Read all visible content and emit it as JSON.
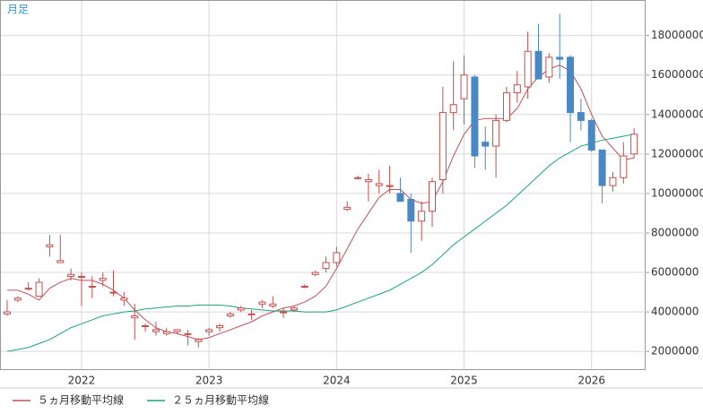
{
  "chart_data": {
    "type": "candlestick",
    "label": "月足",
    "categories": [
      null,
      null,
      null,
      null,
      null,
      null,
      null,
      "2022",
      null,
      null,
      null,
      null,
      null,
      null,
      null,
      null,
      null,
      null,
      null,
      "2023",
      null,
      null,
      null,
      null,
      null,
      null,
      null,
      null,
      null,
      null,
      null,
      "2024",
      null,
      null,
      null,
      null,
      null,
      null,
      null,
      null,
      null,
      null,
      null,
      "2025",
      null,
      null,
      null,
      null,
      null,
      null,
      null,
      null,
      null,
      null,
      null,
      "2026",
      null,
      null,
      null,
      null
    ],
    "open": [
      3900000,
      4600000,
      5200000,
      4800000,
      7300000,
      6500000,
      5800000,
      5800000,
      5300000,
      5600000,
      5000000,
      4600000,
      3700000,
      3300000,
      3000000,
      2900000,
      3000000,
      2900000,
      2500000,
      3000000,
      3200000,
      3800000,
      4100000,
      3900000,
      4400000,
      4300000,
      4000000,
      4100000,
      5300000,
      5900000,
      6200000,
      6500000,
      9200000,
      10800000,
      10600000,
      10400000,
      10400000,
      10000000,
      9700000,
      8600000,
      9100000,
      10700000,
      14100000,
      14800000,
      15900000,
      12600000,
      12400000,
      13700000,
      15100000,
      15400000,
      17200000,
      15900000,
      16900000,
      16900000,
      14100000,
      13700000,
      12200000,
      10400000,
      10800000,
      12000000
    ],
    "high": [
      4600000,
      4800000,
      5500000,
      5700000,
      7900000,
      7900000,
      6200000,
      6000000,
      5800000,
      6000000,
      6100000,
      5000000,
      4400000,
      3400000,
      3500000,
      3200000,
      3100000,
      3100000,
      2700000,
      3200000,
      3400000,
      4000000,
      4300000,
      4100000,
      4600000,
      4800000,
      4200000,
      4300000,
      5400000,
      6100000,
      6800000,
      7300000,
      9600000,
      10900000,
      11000000,
      11200000,
      11400000,
      10800000,
      10000000,
      9600000,
      10800000,
      15400000,
      16700000,
      17000000,
      16000000,
      13400000,
      14000000,
      15400000,
      16200000,
      18200000,
      18600000,
      17100000,
      19100000,
      17000000,
      14800000,
      13800000,
      12200000,
      11100000,
      12600000,
      13300000
    ],
    "low": [
      3800000,
      4500000,
      5100000,
      4800000,
      6800000,
      6500000,
      5600000,
      4300000,
      4700000,
      5300000,
      4800000,
      4300000,
      2600000,
      3000000,
      2800000,
      2800000,
      2900000,
      2300000,
      2200000,
      2800000,
      3000000,
      3700000,
      4000000,
      3600000,
      4200000,
      4200000,
      3700000,
      4000000,
      5200000,
      5800000,
      6000000,
      6300000,
      9100000,
      10700000,
      9600000,
      10000000,
      10000000,
      9600000,
      7000000,
      7600000,
      8300000,
      10000000,
      13200000,
      13500000,
      11300000,
      11200000,
      10800000,
      13600000,
      14600000,
      14800000,
      15800000,
      15600000,
      15800000,
      12600000,
      13200000,
      12100000,
      9500000,
      10100000,
      10500000,
      11800000
    ],
    "close": [
      4000000,
      4700000,
      5200000,
      5500000,
      7400000,
      6600000,
      5900000,
      5800000,
      5300000,
      5700000,
      5000000,
      4700000,
      3800000,
      3300000,
      3100000,
      3000000,
      3100000,
      2900000,
      2600000,
      3100000,
      3300000,
      3900000,
      4200000,
      3900000,
      4500000,
      4400000,
      4000000,
      4200000,
      5300000,
      6000000,
      6500000,
      7000000,
      9300000,
      10800000,
      10700000,
      10500000,
      10400000,
      9600000,
      8600000,
      9100000,
      10600000,
      14100000,
      14500000,
      16000000,
      11900000,
      12400000,
      13700000,
      15100000,
      15500000,
      17200000,
      15800000,
      16900000,
      16800000,
      14100000,
      13700000,
      12200000,
      10400000,
      10800000,
      11900000,
      13000000
    ],
    "up_color": "#c0504d",
    "down_color": "#4a88c4",
    "series": [
      {
        "name": "５ヵ月移動平均線",
        "color": "#c0505a",
        "values": [
          5100000,
          5100000,
          4900000,
          4600000,
          5200000,
          5500000,
          5700000,
          5600000,
          5600000,
          5400000,
          5100000,
          4700000,
          4100000,
          3600000,
          3200000,
          3000000,
          2900000,
          2750000,
          2600000,
          2700000,
          2900000,
          3100000,
          3300000,
          3500000,
          3800000,
          4000000,
          4200000,
          4300000,
          4500000,
          4800000,
          5300000,
          6200000,
          7200000,
          8200000,
          9000000,
          9800000,
          10200000,
          10200000,
          9700000,
          9500000,
          9600000,
          10600000,
          11900000,
          13000000,
          13700000,
          13800000,
          13800000,
          13800000,
          14300000,
          15300000,
          15900000,
          16300000,
          16500000,
          16200000,
          15300000,
          14000000,
          12900000,
          12300000,
          11700000,
          11800000
        ]
      },
      {
        "name": "２５ヵ月移動平均線",
        "color": "#1aa37a",
        "values": [
          2000000,
          2100000,
          2200000,
          2400000,
          2600000,
          2900000,
          3200000,
          3400000,
          3600000,
          3800000,
          3900000,
          4000000,
          4050000,
          4150000,
          4200000,
          4250000,
          4300000,
          4300000,
          4350000,
          4350000,
          4350000,
          4300000,
          4200000,
          4150000,
          4100000,
          4050000,
          4050000,
          4050000,
          4000000,
          4000000,
          4000000,
          4100000,
          4300000,
          4500000,
          4700000,
          4900000,
          5100000,
          5400000,
          5700000,
          6000000,
          6400000,
          6900000,
          7400000,
          7800000,
          8200000,
          8600000,
          9000000,
          9400000,
          9900000,
          10400000,
          10900000,
          11400000,
          11800000,
          12100000,
          12400000,
          12550000,
          12700000,
          12800000,
          12900000,
          13000000
        ]
      }
    ],
    "ylim": [
      1100000,
      19800000
    ],
    "yticks": [
      2000000,
      4000000,
      6000000,
      8000000,
      10000000,
      12000000,
      14000000,
      16000000,
      18000000
    ],
    "grid": true
  }
}
